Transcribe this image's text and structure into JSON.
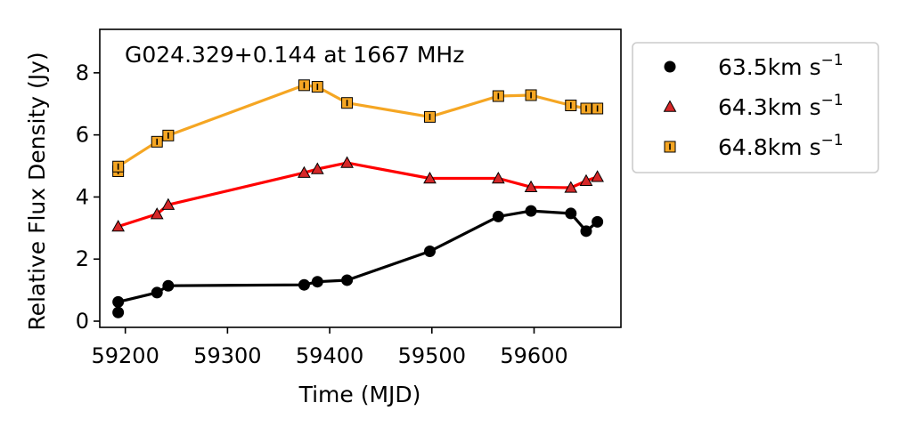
{
  "chart_data": {
    "type": "line",
    "title": "",
    "annotation": "G024.329+0.144 at 1667 MHz",
    "xlabel": "Time (MJD)",
    "ylabel": "Relative Flux Density (Jy)",
    "xlim": [
      59175,
      59685
    ],
    "ylim": [
      -0.2,
      9.4
    ],
    "xticks": [
      59200,
      59300,
      59400,
      59500,
      59600
    ],
    "yticks": [
      0,
      2,
      4,
      6,
      8
    ],
    "legend_placement": "outside-right",
    "grid": false,
    "series": [
      {
        "name": "63.5km s⁻¹",
        "name_base": "63.5km s",
        "name_sup": "−1",
        "marker": "circle",
        "color": "#000000",
        "marker_fill": "#000000",
        "x": [
          59193,
          59193,
          59231,
          59242,
          59375,
          59388,
          59417,
          59498,
          59565,
          59597,
          59636,
          59651,
          59662
        ],
        "y": [
          0.28,
          0.62,
          0.92,
          1.14,
          1.17,
          1.27,
          1.32,
          2.25,
          3.37,
          3.55,
          3.47,
          2.9,
          3.2
        ]
      },
      {
        "name": "64.3km s⁻¹",
        "name_base": "64.3km s",
        "name_sup": "−1",
        "marker": "triangle",
        "color": "#ff0000",
        "marker_fill": "#d62728",
        "x": [
          59193,
          59231,
          59242,
          59375,
          59388,
          59417,
          59498,
          59565,
          59597,
          59636,
          59651,
          59662
        ],
        "y": [
          3.05,
          3.45,
          3.75,
          4.78,
          4.9,
          5.1,
          4.6,
          4.6,
          4.32,
          4.3,
          4.52,
          4.65
        ]
      },
      {
        "name": "64.8km s⁻¹",
        "name_base": "64.8km s",
        "name_sup": "−1",
        "marker": "square",
        "color": "#f5a623",
        "marker_fill": "#f5a623",
        "x": [
          59193,
          59193,
          59231,
          59242,
          59375,
          59388,
          59417,
          59498,
          59565,
          59597,
          59636,
          59651,
          59662
        ],
        "y": [
          4.83,
          4.98,
          5.78,
          5.98,
          7.6,
          7.55,
          7.03,
          6.58,
          7.25,
          7.28,
          6.95,
          6.85,
          6.85
        ]
      }
    ]
  }
}
